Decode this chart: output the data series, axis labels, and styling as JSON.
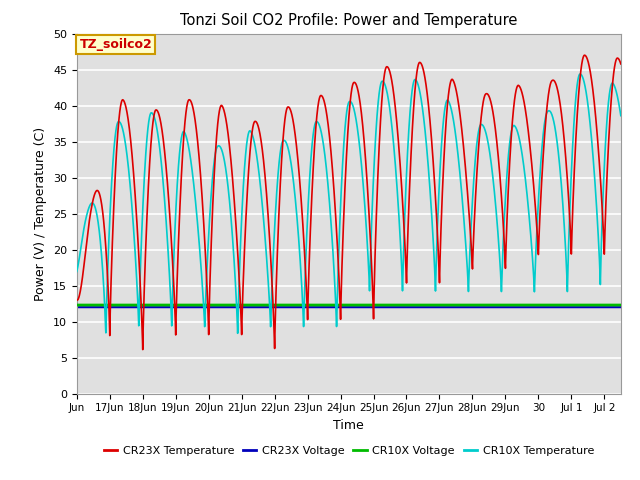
{
  "title": "Tonzi Soil CO2 Profile: Power and Temperature",
  "xlabel": "Time",
  "ylabel": "Power (V) / Temperature (C)",
  "ylim": [
    0,
    50
  ],
  "xlim_start": 0,
  "xlim_end": 16.5,
  "plot_bg_color": "#e0e0e0",
  "fig_bg_color": "#ffffff",
  "grid_color": "#ffffff",
  "annotation_text": "TZ_soilco2",
  "annotation_bg": "#ffffcc",
  "annotation_border": "#cc9900",
  "cr23x_temp_color": "#dd0000",
  "cr23x_volt_color": "#0000bb",
  "cr10x_volt_color": "#00bb00",
  "cr10x_temp_color": "#00cccc",
  "xtick_labels": [
    "Jun",
    "17Jun",
    "18Jun",
    "19Jun",
    "20Jun",
    "21Jun",
    "22Jun",
    "23Jun",
    "24Jun",
    "25Jun",
    "26Jun",
    "27Jun",
    "28Jun",
    "29Jun",
    "30",
    "Jul 1",
    "Jul 2"
  ],
  "xtick_positions": [
    0,
    1,
    2,
    3,
    4,
    5,
    6,
    7,
    8,
    9,
    10,
    11,
    12,
    13,
    14,
    15,
    16
  ],
  "cr23x_volt_level": 12.0,
  "cr10x_volt_level": 12.3,
  "temp_max_cr23x": [
    13,
    42,
    39,
    40,
    42,
    37,
    39,
    41,
    42,
    45,
    46,
    46,
    40,
    44,
    41,
    47,
    47,
    46
  ],
  "temp_min_cr23x": [
    13,
    8,
    6,
    8,
    8,
    8,
    6,
    10,
    10,
    10,
    15,
    15,
    17,
    17,
    19,
    19,
    19,
    22
  ],
  "temp_max_cr10x": [
    16,
    37,
    39,
    39,
    32,
    38,
    34,
    37,
    39,
    43,
    44,
    43,
    37,
    38,
    36,
    44,
    45,
    40
  ],
  "temp_min_cr10x": [
    16,
    8,
    9,
    9,
    9,
    8,
    9,
    9,
    9,
    14,
    14,
    14,
    14,
    14,
    14,
    14,
    15,
    22
  ]
}
